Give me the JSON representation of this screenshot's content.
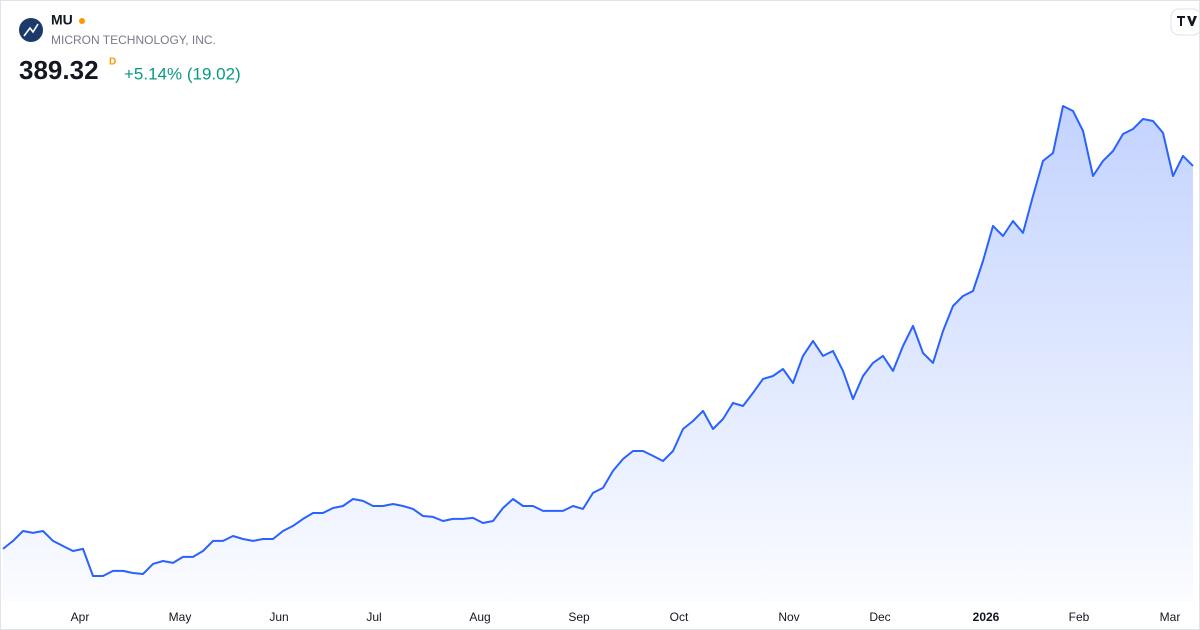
{
  "header": {
    "symbol": "MU",
    "company": "MICRON TECHNOLOGY, INC.",
    "price": 389.32,
    "interval": "D",
    "change": "+5.14% (19.02)"
  },
  "chart_data": {
    "type": "area",
    "color": "#2962ff",
    "values": [
      87.9,
      94.2,
      102.0,
      100.5,
      102.0,
      94.2,
      90.2,
      86.3,
      87.9,
      66.6,
      66.6,
      70.6,
      70.6,
      69.0,
      68.2,
      76.1,
      78.4,
      76.9,
      81.6,
      81.6,
      86.3,
      94.2,
      94.2,
      98.1,
      95.7,
      94.2,
      95.7,
      95.7,
      102.0,
      106.0,
      111.5,
      116.2,
      116.2,
      120.1,
      121.7,
      127.2,
      125.7,
      121.7,
      121.7,
      123.3,
      121.7,
      119.4,
      113.8,
      113.1,
      109.9,
      111.5,
      111.5,
      112.3,
      108.3,
      109.9,
      120.1,
      127.2,
      121.7,
      121.7,
      117.8,
      117.8,
      117.8,
      121.7,
      119.4,
      132.0,
      135.9,
      149.3,
      158.7,
      165.0,
      165.0,
      161.1,
      157.1,
      165.0,
      182.3,
      188.6,
      196.5,
      182.3,
      190.2,
      202.8,
      200.4,
      210.7,
      221.7,
      224.0,
      229.5,
      218.5,
      239.8,
      251.6,
      239.8,
      243.7,
      228.0,
      205.9,
      224.0,
      234.3,
      239.8,
      228.0,
      247.6,
      263.4,
      242.1,
      234.3,
      259.4,
      279.1,
      287.0,
      290.9,
      314.5,
      342.1,
      334.2,
      346.0,
      336.6,
      365.7,
      393.3,
      399.5,
      436.5,
      432.6,
      416.9,
      381.4,
      393.3,
      401.1,
      414.5,
      418.4,
      426.3,
      424.7,
      415.3,
      381.4,
      397.2,
      389.32
    ],
    "xticks": [
      {
        "value": 7.7,
        "label": "Apr"
      },
      {
        "value": 17.7,
        "label": "May"
      },
      {
        "value": 27.6,
        "label": "Jun"
      },
      {
        "value": 37.1,
        "label": "Jul"
      },
      {
        "value": 47.7,
        "label": "Aug"
      },
      {
        "value": 57.6,
        "label": "Sep"
      },
      {
        "value": 67.6,
        "label": "Oct"
      },
      {
        "value": 78.6,
        "label": "Nov"
      },
      {
        "value": 87.7,
        "label": "Dec"
      },
      {
        "value": 98.3,
        "label": "2026",
        "bold": true
      },
      {
        "value": 107.6,
        "label": "Feb"
      },
      {
        "value": 116.7,
        "label": "Mar"
      }
    ]
  }
}
